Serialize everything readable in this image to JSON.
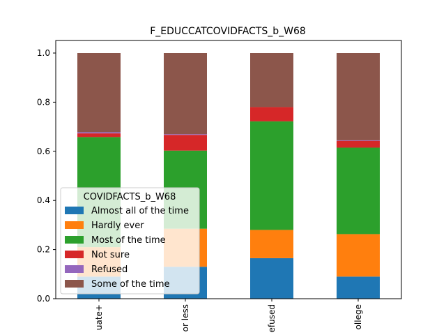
{
  "chart_data": {
    "type": "bar",
    "stacked": true,
    "title": "F_EDUCCATCOVIDFACTS_b_W68",
    "xlabel": "",
    "ylabel": "",
    "ylim": [
      0,
      1.0
    ],
    "yticks": [
      "0.0",
      "0.2",
      "0.4",
      "0.6",
      "0.8",
      "1.0"
    ],
    "categories": [
      "uate+",
      "or less",
      "efused",
      "ollege"
    ],
    "legend": {
      "title": "COVIDFACTS_b_W68",
      "placement": "lower-left"
    },
    "series": [
      {
        "name": "Almost all of the time",
        "color": "#1f77b4",
        "values": [
          0.09,
          0.13,
          0.165,
          0.09
        ]
      },
      {
        "name": "Hardly ever",
        "color": "#ff7f0e",
        "values": [
          0.12,
          0.155,
          0.115,
          0.173
        ]
      },
      {
        "name": "Most of the time",
        "color": "#2ca02c",
        "values": [
          0.448,
          0.318,
          0.442,
          0.352
        ]
      },
      {
        "name": "Not sure",
        "color": "#d62728",
        "values": [
          0.015,
          0.064,
          0.058,
          0.028
        ]
      },
      {
        "name": "Refused",
        "color": "#9467bd",
        "values": [
          0.005,
          0.003,
          0.0,
          0.002
        ]
      },
      {
        "name": "Some of the time",
        "color": "#8c564b",
        "values": [
          0.322,
          0.33,
          0.22,
          0.355
        ]
      }
    ]
  }
}
